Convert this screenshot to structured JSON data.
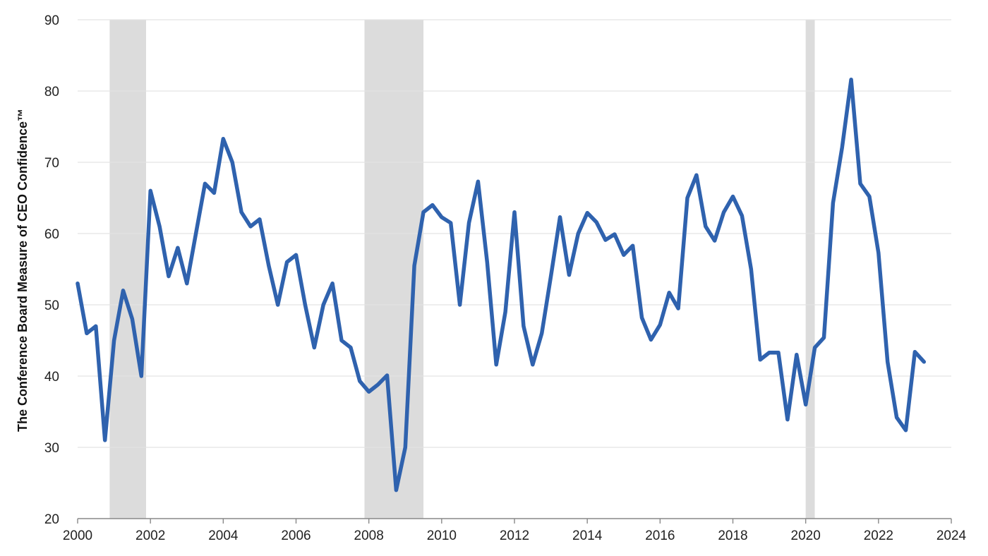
{
  "chart_data": {
    "type": "line",
    "title": "",
    "xlabel": "",
    "ylabel": "The Conference Board Measure of CEO Confidence™",
    "xlim": [
      2000,
      2024
    ],
    "ylim": [
      20,
      90
    ],
    "x_ticks": [
      "2000",
      "2002",
      "2004",
      "2006",
      "2008",
      "2010",
      "2012",
      "2014",
      "2016",
      "2018",
      "2020",
      "2022",
      "2024"
    ],
    "y_ticks": [
      "20",
      "30",
      "40",
      "50",
      "60",
      "70",
      "80",
      "90"
    ],
    "grid": "horizontal",
    "colors": {
      "line": "#2f62ae",
      "recession": "#dcdcdc",
      "grid": "#e3e3e3",
      "axis": "#888888"
    },
    "recessions": [
      [
        2000.88,
        2001.88
      ],
      [
        2007.88,
        2009.5
      ],
      [
        2020.0,
        2020.25
      ]
    ],
    "series": [
      {
        "x": [
          2000.0,
          2000.25,
          2000.5,
          2000.75,
          2001.0,
          2001.25,
          2001.5,
          2001.75,
          2002.0,
          2002.25,
          2002.5,
          2002.75,
          2003.0,
          2003.25,
          2003.5,
          2003.75,
          2004.0,
          2004.25,
          2004.5,
          2004.75,
          2005.0,
          2005.25,
          2005.5,
          2005.75,
          2006.0,
          2006.25,
          2006.5,
          2006.75,
          2007.0,
          2007.25,
          2007.5,
          2007.75,
          2008.0,
          2008.25,
          2008.5,
          2008.75,
          2009.0,
          2009.25,
          2009.5,
          2009.75,
          2010.0,
          2010.25,
          2010.5,
          2010.75,
          2011.0,
          2011.25,
          2011.5,
          2011.75,
          2012.0,
          2012.25,
          2012.5,
          2012.75,
          2013.0,
          2013.25,
          2013.5,
          2013.75,
          2014.0,
          2014.25,
          2014.5,
          2014.75,
          2015.0,
          2015.25,
          2015.5,
          2015.75,
          2016.0,
          2016.25,
          2016.5,
          2016.75,
          2017.0,
          2017.25,
          2017.5,
          2017.75,
          2018.0,
          2018.25,
          2018.5,
          2018.75,
          2019.0,
          2019.25,
          2019.5,
          2019.75,
          2020.0,
          2020.25,
          2020.5,
          2020.75,
          2021.0,
          2021.25,
          2021.5,
          2021.75,
          2022.0,
          2022.25,
          2022.5,
          2022.75,
          2023.0,
          2023.25
        ],
        "values": [
          53,
          46,
          47,
          31,
          45,
          52,
          48,
          40,
          66,
          61,
          54,
          58,
          53,
          60,
          67,
          65.7,
          73.3,
          70,
          63,
          61,
          62,
          55.5,
          50,
          56,
          57,
          50,
          44,
          50,
          53,
          45,
          44,
          39.3,
          37.8,
          38.8,
          40.1,
          24,
          30,
          55.5,
          63,
          64,
          62.3,
          61.5,
          50,
          61.5,
          67.3,
          56,
          41.6,
          49,
          63,
          47,
          41.6,
          46,
          54,
          62.3,
          54.2,
          60,
          62.9,
          61.6,
          59.1,
          59.9,
          57,
          58.3,
          48.2,
          45.1,
          47.2,
          51.7,
          49.5,
          65,
          68.2,
          61,
          59,
          63,
          65.2,
          62.5,
          55,
          42.3,
          43.3,
          43.3,
          33.9,
          43,
          36,
          44,
          45.4,
          64.3,
          72.1,
          81.6,
          67,
          65.2,
          57.3,
          42,
          34.2,
          32.4,
          43.4,
          42
        ]
      }
    ]
  }
}
